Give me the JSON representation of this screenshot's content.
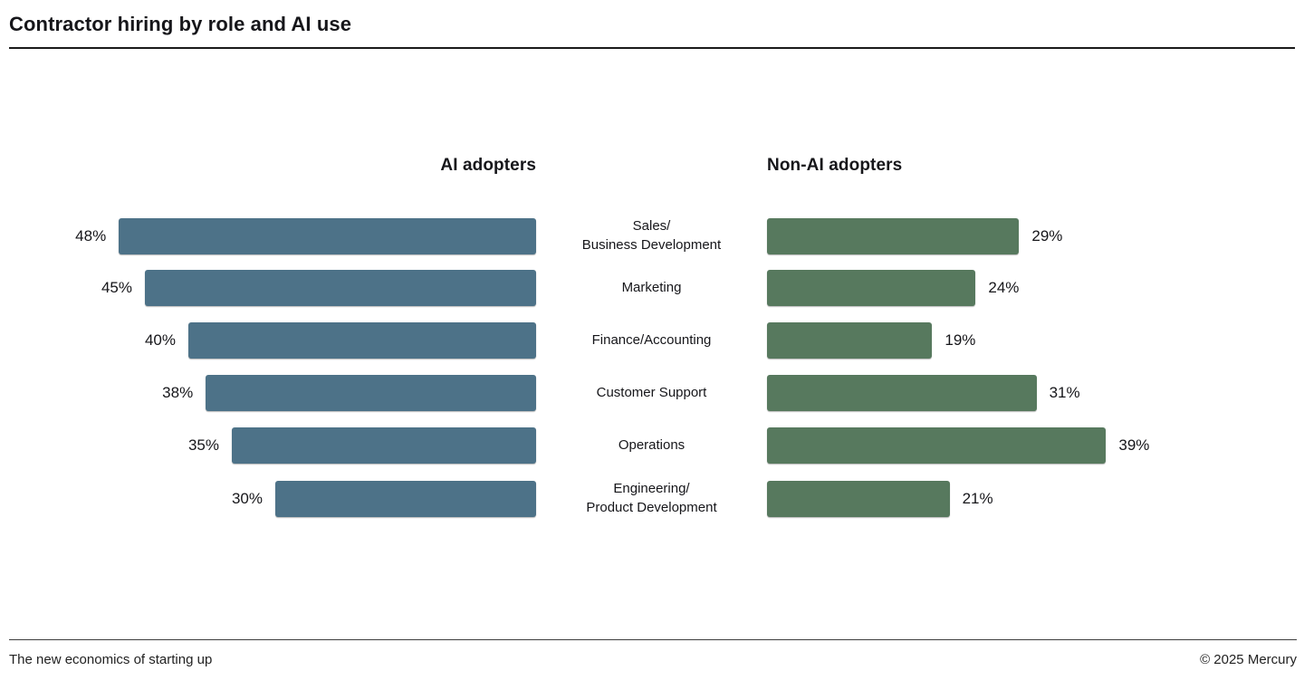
{
  "title": "Contractor hiring by role and AI use",
  "chart_data": {
    "type": "bar",
    "orientation": "horizontal-diverging",
    "title": "Contractor hiring by role and AI use",
    "categories": [
      "Sales/\nBusiness Development",
      "Marketing",
      "Finance/Accounting",
      "Customer Support",
      "Operations",
      "Engineering/\nProduct Development"
    ],
    "series": [
      {
        "name": "AI adopters",
        "side": "left",
        "color": "#4d7288",
        "values": [
          48,
          45,
          40,
          38,
          35,
          30
        ],
        "labels": [
          "48%",
          "45%",
          "40%",
          "38%",
          "35%",
          "30%"
        ]
      },
      {
        "name": "Non-AI adopters",
        "side": "right",
        "color": "#57795e",
        "values": [
          29,
          24,
          19,
          31,
          39,
          21
        ],
        "labels": [
          "29%",
          "24%",
          "19%",
          "31%",
          "39%",
          "21%"
        ]
      }
    ],
    "xlim": [
      0,
      50
    ],
    "value_suffix": "%",
    "grid": false,
    "legend_position": "column-headers"
  },
  "footer": {
    "left": "The new economics of starting up",
    "right": "© 2025 Mercury"
  }
}
